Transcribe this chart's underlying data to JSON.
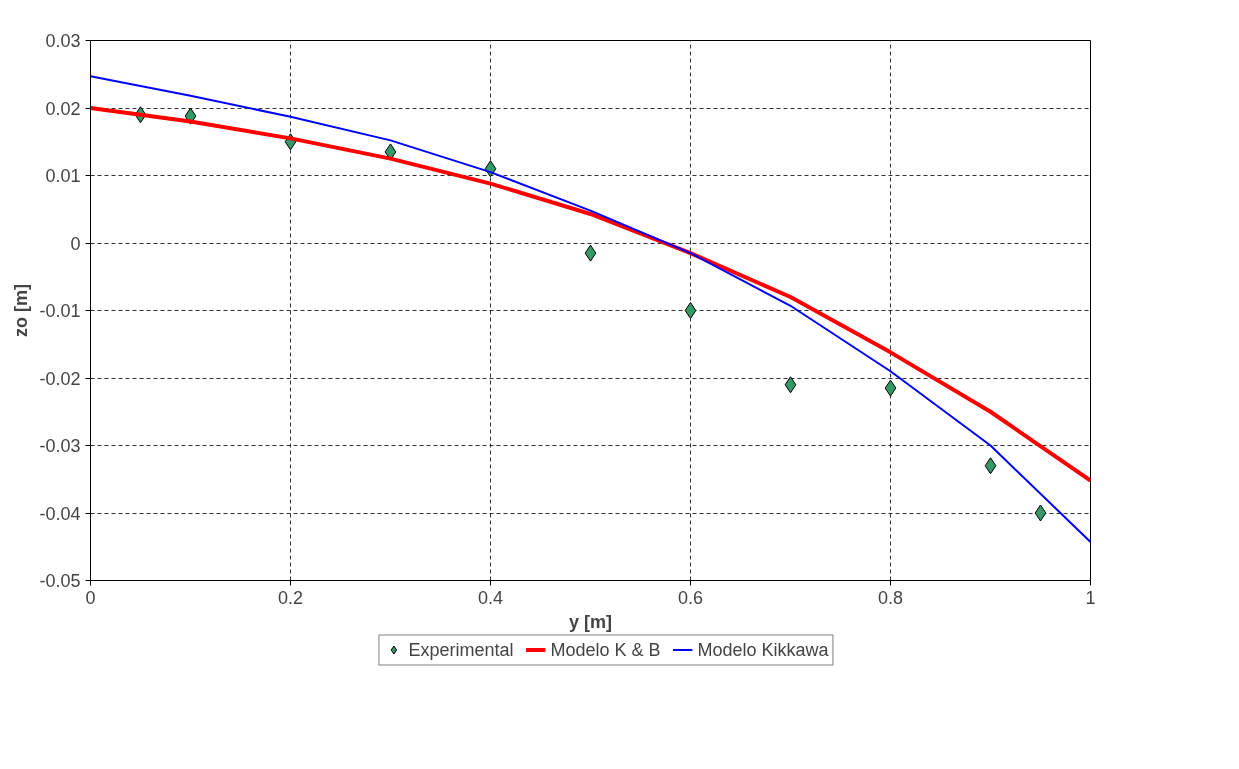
{
  "chart_data": {
    "type": "line",
    "xlabel": "y [m]",
    "ylabel": "zo [m]",
    "xlim": [
      0,
      1
    ],
    "xticks": [
      0,
      0.2,
      0.4,
      0.6,
      0.8,
      1
    ],
    "ylim": [
      -0.05,
      0.03
    ],
    "yticks": [
      -0.05,
      -0.04,
      -0.03,
      -0.02,
      -0.01,
      0,
      0.01,
      0.02,
      0.03
    ],
    "grid": true,
    "legend": "bottom",
    "series": [
      {
        "name": "Experimental",
        "type": "scatter",
        "marker": "diamond",
        "color": "#339966",
        "x": [
          0.05,
          0.1,
          0.2,
          0.3,
          0.4,
          0.5,
          0.6,
          0.7,
          0.8,
          0.9,
          0.95
        ],
        "values": [
          0.019,
          0.0188,
          0.015,
          0.0135,
          0.011,
          -0.0015,
          -0.01,
          -0.021,
          -0.0215,
          -0.033,
          -0.04
        ]
      },
      {
        "name": "Modelo K & B",
        "type": "line",
        "line_style": "solid",
        "color": "#ff0000",
        "x": [
          0,
          0.1,
          0.2,
          0.3,
          0.4,
          0.5,
          0.6,
          0.7,
          0.8,
          0.9,
          1.0
        ],
        "values": [
          0.02,
          0.018,
          0.0155,
          0.0125,
          0.0088,
          0.0043,
          -0.0015,
          -0.008,
          -0.0162,
          -0.025,
          -0.0352
        ]
      },
      {
        "name": "Modelo Kikkawa",
        "type": "line",
        "line_style": "solid",
        "color": "#0000ff",
        "x": [
          0,
          0.1,
          0.2,
          0.3,
          0.4,
          0.5,
          0.6,
          0.7,
          0.8,
          0.9,
          1.0
        ],
        "values": [
          0.0247,
          0.0218,
          0.0187,
          0.0152,
          0.0105,
          0.0048,
          -0.0015,
          -0.0093,
          -0.019,
          -0.03,
          -0.0443
        ]
      }
    ]
  }
}
